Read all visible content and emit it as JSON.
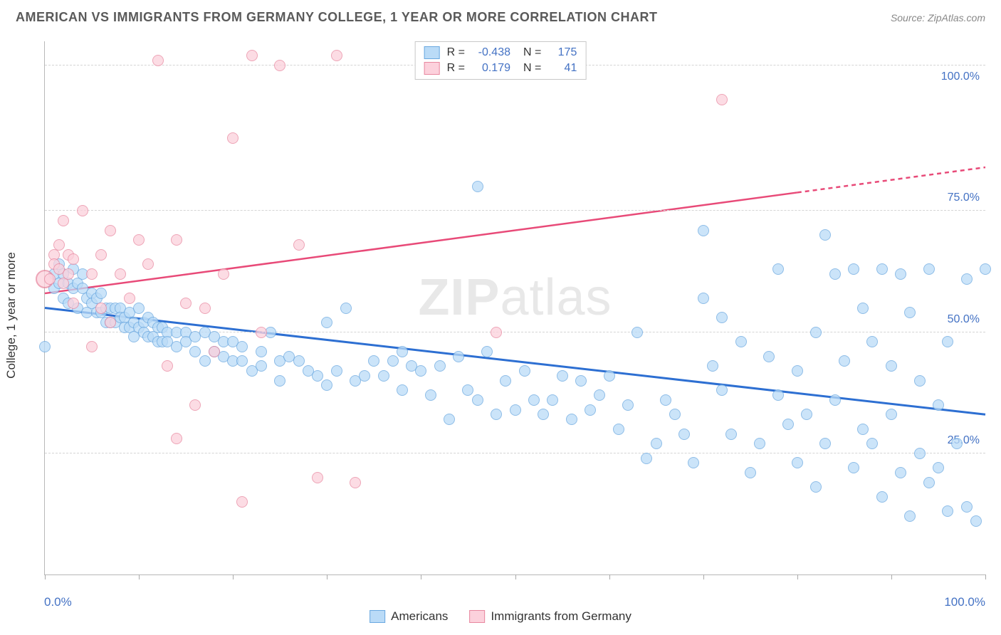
{
  "title": "AMERICAN VS IMMIGRANTS FROM GERMANY COLLEGE, 1 YEAR OR MORE CORRELATION CHART",
  "source": "Source: ZipAtlas.com",
  "watermark": "ZIPatlas",
  "ylabel": "College, 1 year or more",
  "chart": {
    "type": "scatter",
    "xlim": [
      0,
      100
    ],
    "ylim": [
      0,
      110
    ],
    "y_gridlines": [
      25,
      50,
      75,
      105
    ],
    "y_tick_labels": {
      "25": "25.0%",
      "50": "50.0%",
      "75": "75.0%",
      "100": "100.0%"
    },
    "x_ticks": [
      0,
      10,
      20,
      30,
      40,
      50,
      60,
      70,
      80,
      90,
      100
    ],
    "x_axis_left_label": "0.0%",
    "x_axis_right_label": "100.0%",
    "background_color": "#ffffff",
    "grid_color": "#d4d4d4",
    "axis_color": "#b8b8b8",
    "tick_label_color": "#4472c4",
    "marker_radius": 8,
    "marker_stroke_width": 1.5,
    "series": [
      {
        "name": "Americans",
        "legend_label": "Americans",
        "fill": "#badbf7",
        "stroke": "#6aa8e0",
        "opacity": 0.75,
        "trend": {
          "color": "#2d6fd2",
          "width": 3,
          "x1": 0,
          "y1": 55,
          "x2": 100,
          "y2": 33,
          "dashed_from_x": null
        },
        "stats": {
          "R": "-0.438",
          "N": "175"
        },
        "points": [
          [
            0,
            47
          ],
          [
            1,
            62
          ],
          [
            1,
            59
          ],
          [
            1.5,
            60
          ],
          [
            1.5,
            64
          ],
          [
            2,
            62
          ],
          [
            2,
            57
          ],
          [
            2.5,
            60
          ],
          [
            2.5,
            56
          ],
          [
            3,
            63
          ],
          [
            3,
            59
          ],
          [
            3.5,
            60
          ],
          [
            3.5,
            55
          ],
          [
            4,
            59
          ],
          [
            4,
            62
          ],
          [
            4.5,
            57
          ],
          [
            4.5,
            54
          ],
          [
            5,
            58
          ],
          [
            5,
            56
          ],
          [
            5.5,
            57
          ],
          [
            5.5,
            54
          ],
          [
            6,
            58
          ],
          [
            6,
            54
          ],
          [
            6.5,
            55
          ],
          [
            6.5,
            52
          ],
          [
            7,
            55
          ],
          [
            7,
            52
          ],
          [
            7.5,
            55
          ],
          [
            7.5,
            52
          ],
          [
            8,
            55
          ],
          [
            8,
            53
          ],
          [
            8.5,
            53
          ],
          [
            8.5,
            51
          ],
          [
            9,
            54
          ],
          [
            9,
            51
          ],
          [
            9.5,
            52
          ],
          [
            9.5,
            49
          ],
          [
            10,
            55
          ],
          [
            10,
            51
          ],
          [
            10.5,
            52
          ],
          [
            10.5,
            50
          ],
          [
            11,
            53
          ],
          [
            11,
            49
          ],
          [
            11.5,
            52
          ],
          [
            11.5,
            49
          ],
          [
            12,
            51
          ],
          [
            12,
            48
          ],
          [
            12.5,
            51
          ],
          [
            12.5,
            48
          ],
          [
            13,
            50
          ],
          [
            13,
            48
          ],
          [
            14,
            50
          ],
          [
            14,
            47
          ],
          [
            15,
            50
          ],
          [
            15,
            48
          ],
          [
            16,
            49
          ],
          [
            16,
            46
          ],
          [
            17,
            50
          ],
          [
            17,
            44
          ],
          [
            18,
            49
          ],
          [
            18,
            46
          ],
          [
            19,
            48
          ],
          [
            19,
            45
          ],
          [
            20,
            48
          ],
          [
            20,
            44
          ],
          [
            21,
            47
          ],
          [
            21,
            44
          ],
          [
            22,
            42
          ],
          [
            23,
            46
          ],
          [
            23,
            43
          ],
          [
            24,
            50
          ],
          [
            25,
            44
          ],
          [
            25,
            40
          ],
          [
            26,
            45
          ],
          [
            27,
            44
          ],
          [
            28,
            42
          ],
          [
            29,
            41
          ],
          [
            30,
            52
          ],
          [
            30,
            39
          ],
          [
            31,
            42
          ],
          [
            32,
            55
          ],
          [
            33,
            40
          ],
          [
            34,
            41
          ],
          [
            35,
            44
          ],
          [
            36,
            41
          ],
          [
            37,
            44
          ],
          [
            38,
            46
          ],
          [
            38,
            38
          ],
          [
            39,
            43
          ],
          [
            40,
            42
          ],
          [
            41,
            37
          ],
          [
            42,
            43
          ],
          [
            43,
            32
          ],
          [
            44,
            45
          ],
          [
            45,
            38
          ],
          [
            46,
            80
          ],
          [
            46,
            36
          ],
          [
            47,
            46
          ],
          [
            48,
            33
          ],
          [
            49,
            40
          ],
          [
            50,
            34
          ],
          [
            51,
            42
          ],
          [
            52,
            36
          ],
          [
            53,
            33
          ],
          [
            54,
            36
          ],
          [
            55,
            41
          ],
          [
            56,
            32
          ],
          [
            57,
            40
          ],
          [
            58,
            34
          ],
          [
            59,
            37
          ],
          [
            60,
            41
          ],
          [
            61,
            30
          ],
          [
            62,
            35
          ],
          [
            63,
            50
          ],
          [
            64,
            24
          ],
          [
            65,
            27
          ],
          [
            66,
            36
          ],
          [
            67,
            33
          ],
          [
            68,
            29
          ],
          [
            69,
            23
          ],
          [
            70,
            57
          ],
          [
            70,
            71
          ],
          [
            71,
            43
          ],
          [
            72,
            53
          ],
          [
            72,
            38
          ],
          [
            73,
            29
          ],
          [
            74,
            48
          ],
          [
            75,
            21
          ],
          [
            76,
            27
          ],
          [
            77,
            45
          ],
          [
            78,
            63
          ],
          [
            78,
            37
          ],
          [
            79,
            31
          ],
          [
            80,
            42
          ],
          [
            80,
            23
          ],
          [
            81,
            33
          ],
          [
            82,
            50
          ],
          [
            82,
            18
          ],
          [
            83,
            70
          ],
          [
            83,
            27
          ],
          [
            84,
            62
          ],
          [
            84,
            36
          ],
          [
            85,
            44
          ],
          [
            86,
            63
          ],
          [
            86,
            22
          ],
          [
            87,
            55
          ],
          [
            87,
            30
          ],
          [
            88,
            27
          ],
          [
            88,
            48
          ],
          [
            89,
            63
          ],
          [
            89,
            16
          ],
          [
            90,
            33
          ],
          [
            90,
            43
          ],
          [
            91,
            62
          ],
          [
            91,
            21
          ],
          [
            92,
            54
          ],
          [
            92,
            12
          ],
          [
            93,
            25
          ],
          [
            93,
            40
          ],
          [
            94,
            63
          ],
          [
            94,
            19
          ],
          [
            95,
            35
          ],
          [
            95,
            22
          ],
          [
            96,
            48
          ],
          [
            96,
            13
          ],
          [
            97,
            27
          ],
          [
            98,
            61
          ],
          [
            98,
            14
          ],
          [
            99,
            11
          ],
          [
            100,
            63
          ]
        ]
      },
      {
        "name": "Immigrants from Germany",
        "legend_label": "Immigrants from Germany",
        "fill": "#fcd1dc",
        "stroke": "#e8879f",
        "opacity": 0.75,
        "trend": {
          "color": "#e84a78",
          "width": 2.5,
          "x1": 0,
          "y1": 58,
          "x2": 100,
          "y2": 84,
          "dashed_from_x": 80
        },
        "stats": {
          "R": "0.179",
          "N": "41"
        },
        "points": [
          [
            0.5,
            61
          ],
          [
            1,
            66
          ],
          [
            1,
            64
          ],
          [
            1.5,
            68
          ],
          [
            1.5,
            63
          ],
          [
            2,
            73
          ],
          [
            2,
            60
          ],
          [
            2.5,
            66
          ],
          [
            2.5,
            62
          ],
          [
            3,
            65
          ],
          [
            3,
            56
          ],
          [
            4,
            75
          ],
          [
            5,
            62
          ],
          [
            5,
            47
          ],
          [
            6,
            66
          ],
          [
            6,
            55
          ],
          [
            7,
            71
          ],
          [
            7,
            52
          ],
          [
            8,
            62
          ],
          [
            9,
            57
          ],
          [
            10,
            69
          ],
          [
            11,
            64
          ],
          [
            12,
            106
          ],
          [
            13,
            43
          ],
          [
            14,
            28
          ],
          [
            14,
            69
          ],
          [
            15,
            56
          ],
          [
            16,
            35
          ],
          [
            17,
            55
          ],
          [
            18,
            46
          ],
          [
            19,
            62
          ],
          [
            20,
            90
          ],
          [
            21,
            15
          ],
          [
            22,
            107
          ],
          [
            23,
            50
          ],
          [
            25,
            105
          ],
          [
            27,
            68
          ],
          [
            29,
            20
          ],
          [
            31,
            107
          ],
          [
            33,
            19
          ],
          [
            48,
            50
          ],
          [
            72,
            98
          ]
        ],
        "big_point": {
          "x": 0,
          "y": 61,
          "r": 13
        }
      }
    ]
  },
  "stats_box": {
    "rows": [
      {
        "swatch_fill": "#badbf7",
        "swatch_stroke": "#6aa8e0",
        "R_label": "R =",
        "R": "-0.438",
        "N_label": "N =",
        "N": "175"
      },
      {
        "swatch_fill": "#fcd1dc",
        "swatch_stroke": "#e8879f",
        "R_label": "R =",
        "R": "0.179",
        "N_label": "N =",
        "N": "41"
      }
    ]
  },
  "legend": {
    "items": [
      {
        "swatch_fill": "#badbf7",
        "swatch_stroke": "#6aa8e0",
        "label": "Americans"
      },
      {
        "swatch_fill": "#fcd1dc",
        "swatch_stroke": "#e8879f",
        "label": "Immigrants from Germany"
      }
    ]
  }
}
